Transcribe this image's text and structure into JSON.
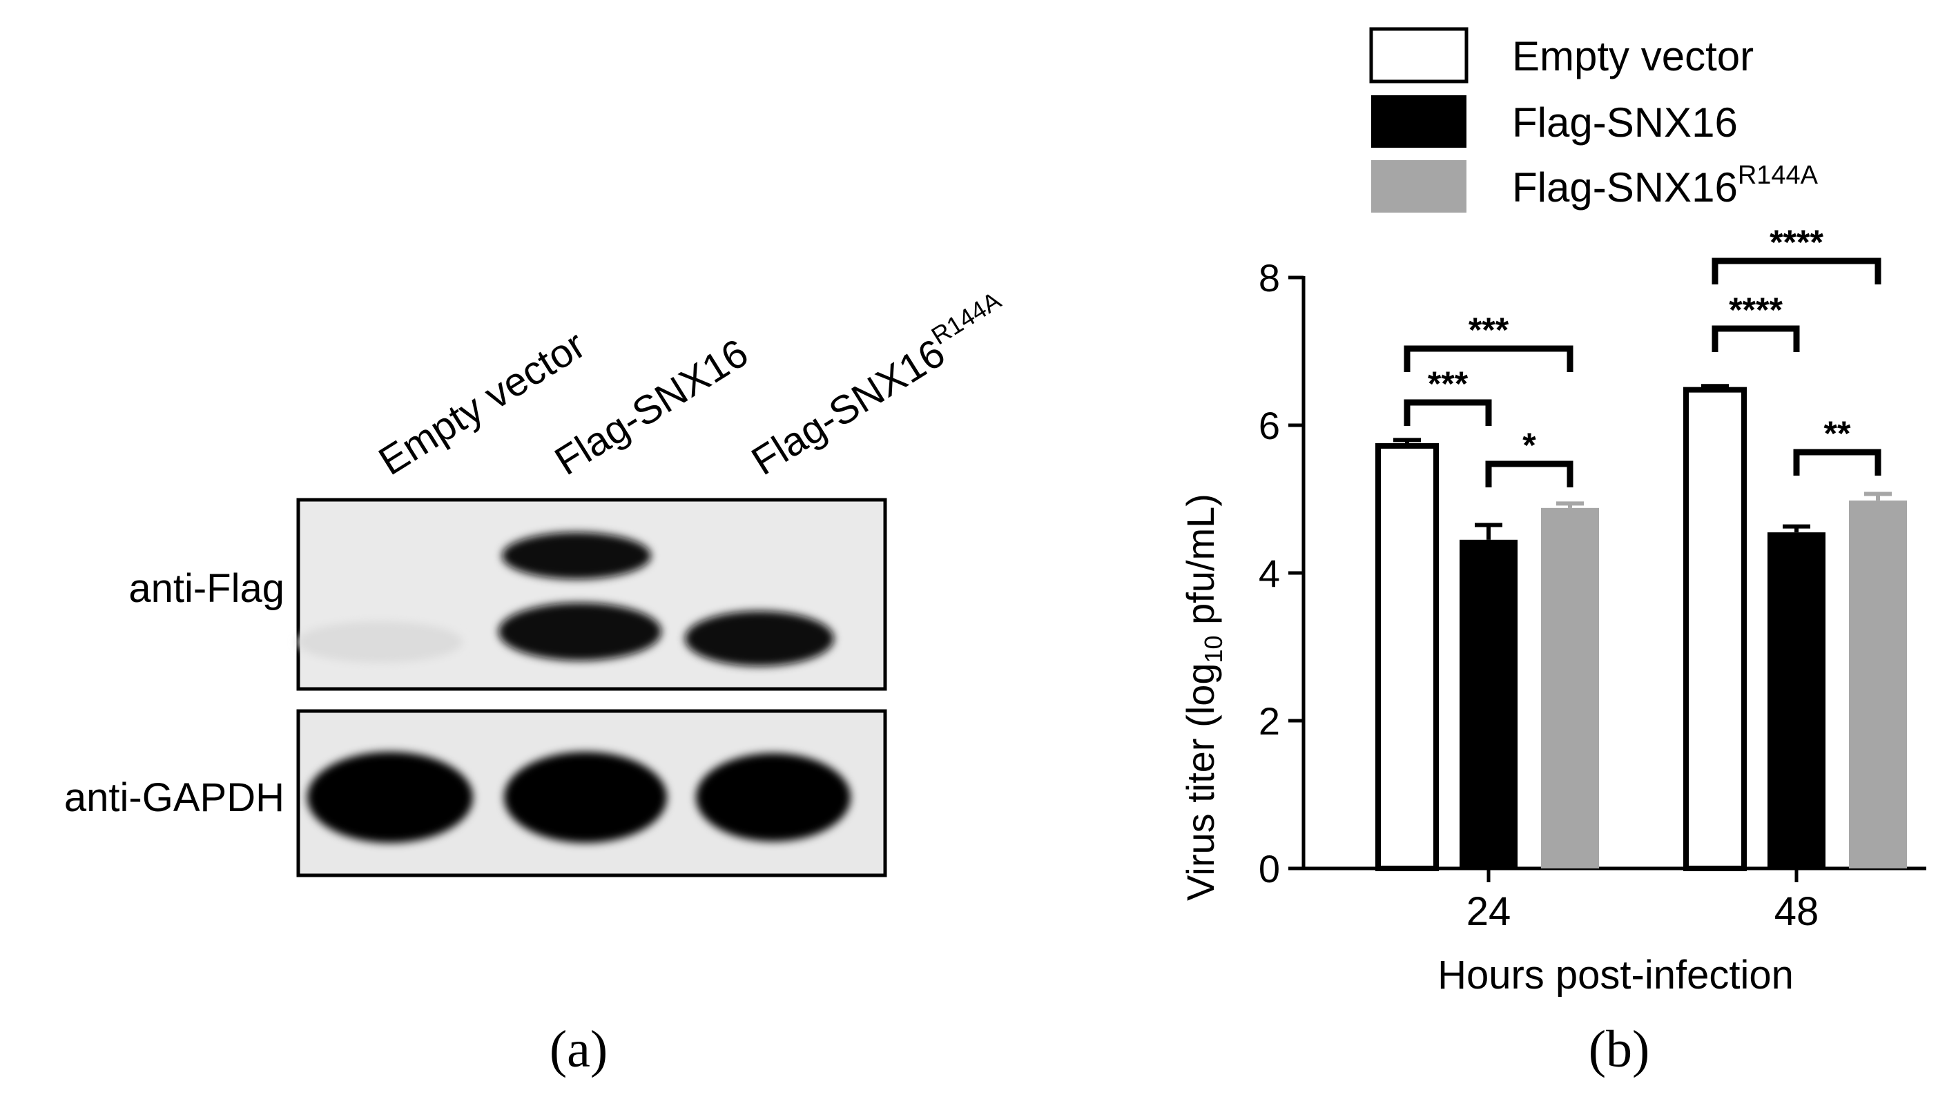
{
  "panel_a": {
    "label": "(a)",
    "lanes": [
      {
        "name": "Empty vector",
        "sup": ""
      },
      {
        "name": "Flag-SNX16",
        "sup": ""
      },
      {
        "name": "Flag-SNX16",
        "sup": "R144A"
      }
    ],
    "rows": [
      {
        "label": "anti-Flag"
      },
      {
        "label": "anti-GAPDH"
      }
    ]
  },
  "panel_b": {
    "label": "(b)"
  },
  "chart_data": {
    "type": "bar",
    "categories": [
      "24",
      "48"
    ],
    "series": [
      {
        "name": "Empty vector",
        "sup": "",
        "color": "#ffffff",
        "values": [
          5.72,
          6.48
        ],
        "errors": [
          0.08,
          0.05
        ]
      },
      {
        "name": "Flag-SNX16",
        "sup": "",
        "color": "#000000",
        "values": [
          4.45,
          4.55
        ],
        "errors": [
          0.2,
          0.08
        ]
      },
      {
        "name": "Flag-SNX16",
        "sup": "R144A",
        "color": "#a6a6a6",
        "values": [
          4.88,
          4.98
        ],
        "errors": [
          0.06,
          0.09
        ]
      }
    ],
    "xlabel": "Hours post-infection",
    "ylabel": {
      "pre": "Virus titer (log",
      "sub": "10",
      "post": " pfu/mL)"
    },
    "ylim": [
      0,
      8
    ],
    "yticks": [
      0,
      2,
      4,
      6,
      8
    ],
    "grid": false,
    "legend": "top",
    "significance": [
      {
        "category": 0,
        "from": 0,
        "to": 2,
        "label": "***"
      },
      {
        "category": 0,
        "from": 0,
        "to": 1,
        "label": "***"
      },
      {
        "category": 0,
        "from": 1,
        "to": 2,
        "label": "*"
      },
      {
        "category": 1,
        "from": 0,
        "to": 2,
        "label": "****"
      },
      {
        "category": 1,
        "from": 0,
        "to": 1,
        "label": "****"
      },
      {
        "category": 1,
        "from": 1,
        "to": 2,
        "label": "**"
      }
    ]
  }
}
